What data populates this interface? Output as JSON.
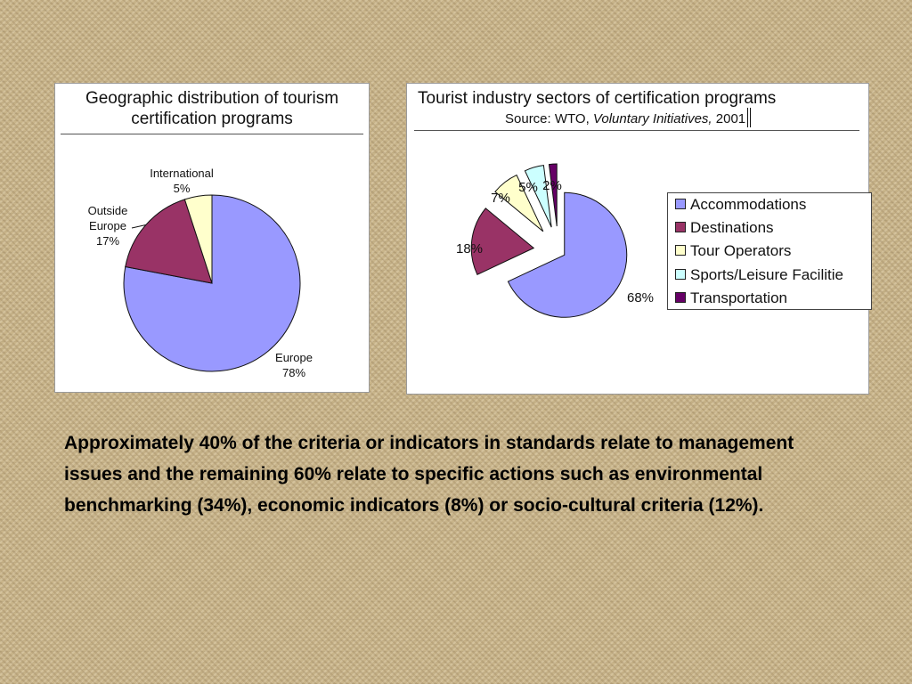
{
  "chart_data": [
    {
      "type": "pie",
      "title": "Geographic distribution of tourism certification programs",
      "slices": [
        {
          "label": "Europe",
          "value": 78,
          "value_label": "78%",
          "color": "#9999ff"
        },
        {
          "label": "Outside Europe",
          "value": 17,
          "value_label": "17%",
          "color": "#993366"
        },
        {
          "label": "International",
          "value": 5,
          "value_label": "5%",
          "color": "#ffffcc"
        }
      ]
    },
    {
      "type": "pie",
      "title": "Tourist industry sectors of certification programs",
      "subtitle": {
        "prefix": "Source: WTO, ",
        "italic": "Voluntary Initiatives,",
        "suffix": " 2001"
      },
      "exploded": true,
      "legend_position": "right",
      "slices": [
        {
          "label": "Accommodations",
          "value": 68,
          "value_label": "68%",
          "color": "#9999ff"
        },
        {
          "label": "Destinations",
          "value": 18,
          "value_label": "18%",
          "color": "#993366"
        },
        {
          "label": "Tour Operators",
          "value": 7,
          "value_label": "7%",
          "color": "#ffffcc"
        },
        {
          "label": "Sports/Leisure Facilitie",
          "value": 5,
          "value_label": "5%",
          "color": "#ccffff"
        },
        {
          "label": "Transportation",
          "value": 2,
          "value_label": "2%",
          "color": "#660066"
        }
      ]
    }
  ],
  "body": {
    "text": "Approximately 40% of the criteria or indicators in standards relate to management issues and the remaining 60% relate to specific actions such as environmental benchmarking (34%), economic indicators (8%) or socio-cultural criteria (12%)."
  }
}
